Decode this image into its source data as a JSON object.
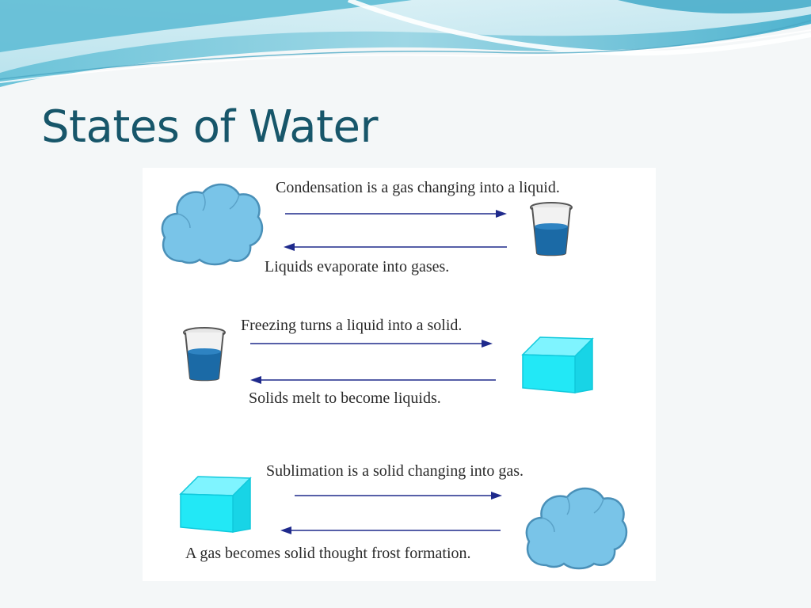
{
  "slide": {
    "title": "States of Water",
    "colors": {
      "title": "#17566a",
      "arrow": "#1f2a8c",
      "water": "#1b6aa6",
      "ice": "#22e8f6",
      "cloud": "#79c4e8"
    }
  },
  "diagram": {
    "processes": [
      {
        "forward_text": "Condensation is a gas changing into a liquid.",
        "reverse_text": "Liquids evaporate into gases.",
        "left_icon": "cloud-icon",
        "right_icon": "water-glass-icon"
      },
      {
        "forward_text": "Freezing turns a liquid into a solid.",
        "reverse_text": "Solids melt to become liquids.",
        "left_icon": "water-glass-icon",
        "right_icon": "ice-cube-icon"
      },
      {
        "forward_text": "Sublimation is a solid changing into gas.",
        "reverse_text": "A gas becomes solid thought frost formation.",
        "left_icon": "ice-cube-icon",
        "right_icon": "cloud-icon"
      }
    ]
  }
}
